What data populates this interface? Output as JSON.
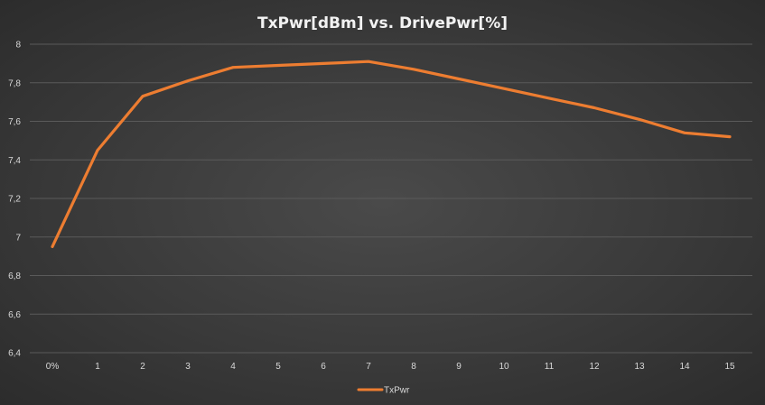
{
  "chart_data": {
    "type": "line",
    "title": "TxPwr[dBm]  vs. DrivePwr[%]",
    "xlabel": "",
    "ylabel": "",
    "categories": [
      "0%",
      "1",
      "2",
      "3",
      "4",
      "5",
      "6",
      "7",
      "8",
      "9",
      "10",
      "11",
      "12",
      "13",
      "14",
      "15"
    ],
    "series": [
      {
        "name": "TxPwr",
        "values": [
          6.95,
          7.45,
          7.73,
          7.81,
          7.88,
          7.89,
          7.9,
          7.91,
          7.87,
          7.82,
          7.77,
          7.72,
          7.67,
          7.61,
          7.54,
          7.52
        ],
        "color": "#ed7d31"
      }
    ],
    "ylim": [
      6.4,
      8
    ],
    "y_ticks": [
      "6,4",
      "6,6",
      "6,8",
      "7",
      "7,2",
      "7,4",
      "7,6",
      "7,8",
      "8"
    ],
    "grid": true,
    "legend": "bottom"
  }
}
